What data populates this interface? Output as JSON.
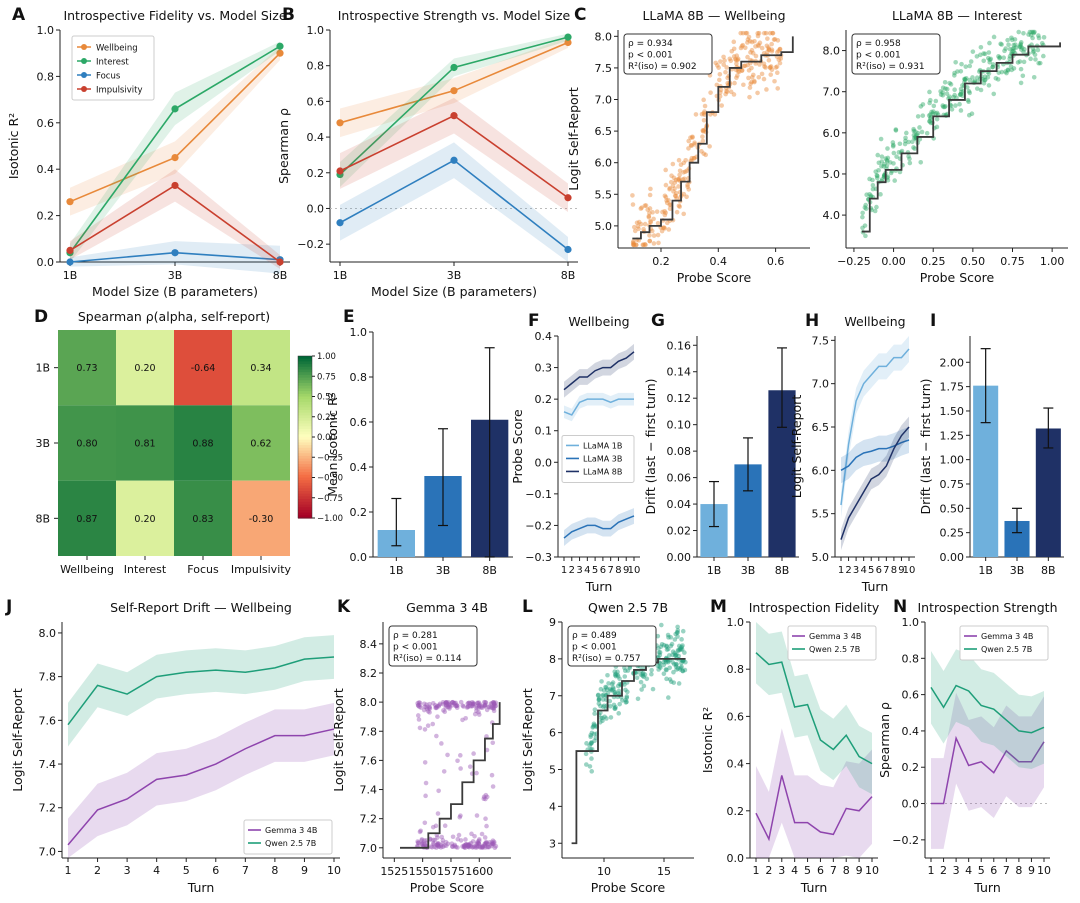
{
  "colors": {
    "wellbeing": "#e8893a",
    "interest": "#2ca867",
    "focus": "#2f7fbf",
    "impulsivity": "#c9402f",
    "gemma": "#8e44ad",
    "qwen": "#1e9e79",
    "l1": "#6fb0dc",
    "l3": "#2a73b8",
    "l8": "#1f3166",
    "fit": "#3a3a3a"
  },
  "chart_data": [
    {
      "id": "A",
      "panel": "A",
      "type": "line",
      "title": "Introspective Fidelity vs. Model Size",
      "xlabel": "Model Size (B parameters)",
      "ylabel": "Isotonic R²",
      "categories": [
        "1B",
        "3B",
        "8B"
      ],
      "ylim": [
        0,
        1
      ],
      "yticks": [
        0.0,
        0.2,
        0.4,
        0.6,
        0.8,
        1.0
      ],
      "legend": "top-left",
      "series": [
        {
          "name": "Wellbeing",
          "color": "#e8893a",
          "values": [
            0.26,
            0.45,
            0.9
          ],
          "band": [
            0.06,
            0.07,
            0.03
          ]
        },
        {
          "name": "Interest",
          "color": "#2ca867",
          "values": [
            0.04,
            0.66,
            0.93
          ],
          "band": [
            0.04,
            0.07,
            0.02
          ]
        },
        {
          "name": "Focus",
          "color": "#2f7fbf",
          "values": [
            0.0,
            0.04,
            0.01
          ],
          "band": [
            0.02,
            0.05,
            0.06
          ]
        },
        {
          "name": "Impulsivity",
          "color": "#c9402f",
          "values": [
            0.05,
            0.33,
            0.0
          ],
          "band": [
            0.04,
            0.07,
            0.03
          ]
        }
      ]
    },
    {
      "id": "B",
      "panel": "B",
      "type": "line",
      "title": "Introspective Strength vs. Model Size",
      "xlabel": "Model Size (B parameters)",
      "ylabel": "Spearman ρ",
      "categories": [
        "1B",
        "3B",
        "8B"
      ],
      "ylim": [
        -0.3,
        1.0
      ],
      "yticks": [
        -0.2,
        0.0,
        0.2,
        0.4,
        0.6,
        0.8,
        1.0
      ],
      "zero_line": true,
      "series": [
        {
          "name": "Wellbeing",
          "color": "#e8893a",
          "values": [
            0.48,
            0.66,
            0.93
          ],
          "band": [
            0.08,
            0.07,
            0.03
          ]
        },
        {
          "name": "Interest",
          "color": "#2ca867",
          "values": [
            0.19,
            0.79,
            0.96
          ],
          "band": [
            0.07,
            0.05,
            0.02
          ]
        },
        {
          "name": "Focus",
          "color": "#2f7fbf",
          "values": [
            -0.08,
            0.27,
            -0.23
          ],
          "band": [
            0.1,
            0.1,
            0.07
          ]
        },
        {
          "name": "Impulsivity",
          "color": "#c9402f",
          "values": [
            0.21,
            0.52,
            0.06
          ],
          "band": [
            0.1,
            0.1,
            0.08
          ]
        }
      ]
    },
    {
      "id": "C1",
      "panel": "C",
      "type": "scatter",
      "title": "LLaMA 8B — Wellbeing",
      "xlabel": "Probe Score",
      "ylabel": "Logit Self-Report",
      "color": "#e8893a",
      "xlim": [
        0.05,
        0.72
      ],
      "ylim": [
        4.65,
        8.1
      ],
      "xticks": [
        0.2,
        0.4,
        0.6
      ],
      "yticks": [
        5.0,
        5.5,
        6.0,
        6.5,
        7.0,
        7.5,
        8.0
      ],
      "tick_decimals": 1,
      "stats": [
        "ρ = 0.934",
        "p < 0.001",
        "R²(iso) = 0.902"
      ],
      "fit": [
        [
          0.1,
          4.8
        ],
        [
          0.13,
          4.9
        ],
        [
          0.16,
          5.0
        ],
        [
          0.2,
          5.1
        ],
        [
          0.24,
          5.4
        ],
        [
          0.27,
          5.7
        ],
        [
          0.3,
          6.0
        ],
        [
          0.33,
          6.3
        ],
        [
          0.36,
          6.8
        ],
        [
          0.4,
          7.2
        ],
        [
          0.44,
          7.5
        ],
        [
          0.48,
          7.6
        ],
        [
          0.55,
          7.7
        ],
        [
          0.62,
          7.75
        ],
        [
          0.66,
          8.0
        ]
      ],
      "scatter": {
        "n": 320,
        "xmin": 0.1,
        "xmax": 0.62,
        "noise": 0.25
      }
    },
    {
      "id": "C2",
      "panel": "",
      "type": "scatter",
      "title": "LLaMA 8B — Interest",
      "xlabel": "Probe Score",
      "ylabel": "",
      "color": "#2ca867",
      "xlim": [
        -0.3,
        1.1
      ],
      "ylim": [
        3.2,
        8.5
      ],
      "xticks": [
        -0.25,
        0.0,
        0.25,
        0.5,
        0.75,
        1.0
      ],
      "yticks": [
        4,
        5,
        6,
        7,
        8
      ],
      "tick_decimals": 2,
      "stats": [
        "ρ = 0.958",
        "p < 0.001",
        "R²(iso) = 0.931"
      ],
      "fit": [
        [
          -0.2,
          3.6
        ],
        [
          -0.15,
          4.4
        ],
        [
          -0.1,
          4.8
        ],
        [
          -0.05,
          5.1
        ],
        [
          0.05,
          5.5
        ],
        [
          0.15,
          5.9
        ],
        [
          0.25,
          6.4
        ],
        [
          0.35,
          6.8
        ],
        [
          0.45,
          7.2
        ],
        [
          0.55,
          7.5
        ],
        [
          0.65,
          7.7
        ],
        [
          0.75,
          7.9
        ],
        [
          0.85,
          8.1
        ],
        [
          1.05,
          8.2
        ]
      ],
      "scatter": {
        "n": 330,
        "xmin": -0.2,
        "xmax": 0.95,
        "noise": 0.3
      }
    },
    {
      "id": "D",
      "panel": "D",
      "type": "heatmap",
      "title": "Spearman ρ(alpha, self-report)",
      "rows": [
        "1B",
        "3B",
        "8B"
      ],
      "cols": [
        "Wellbeing",
        "Interest",
        "Focus",
        "Impulsivity"
      ],
      "values": [
        [
          0.73,
          0.2,
          -0.64,
          0.34
        ],
        [
          0.8,
          0.81,
          0.88,
          0.62
        ],
        [
          0.87,
          0.2,
          0.83,
          -0.3
        ]
      ],
      "labels": [
        [
          "0.73",
          "0.20",
          "-0.64",
          "0.34"
        ],
        [
          "0.80",
          "0.81",
          "0.88",
          "0.62"
        ],
        [
          "0.87",
          "0.20",
          "0.83",
          "-0.30"
        ]
      ],
      "colorbar_ticks": [
        "1.00",
        "0.75",
        "0.50",
        "0.25",
        "0.00",
        "−0.25",
        "−0.50",
        "−0.75",
        "−1.00"
      ]
    },
    {
      "id": "E",
      "panel": "E",
      "type": "bar",
      "title": "",
      "xlabel": "",
      "ylabel": "Mean Isotonic R²",
      "categories": [
        "1B",
        "3B",
        "8B"
      ],
      "values": [
        0.12,
        0.36,
        0.61
      ],
      "err": [
        [
          0.05,
          0.26
        ],
        [
          0.14,
          0.57
        ],
        [
          0.0,
          0.93
        ]
      ],
      "colors": [
        "#6fb0dc",
        "#2a73b8",
        "#1f3166"
      ],
      "ylim": [
        0,
        1.0
      ],
      "yticks": [
        0.0,
        0.2,
        0.4,
        0.6,
        0.8,
        1.0
      ]
    },
    {
      "id": "F",
      "panel": "F",
      "type": "line",
      "title": "Wellbeing",
      "xlabel": "Turn",
      "ylabel": "Probe Score",
      "x": [
        1,
        2,
        3,
        4,
        5,
        6,
        7,
        8,
        9,
        10
      ],
      "ylim": [
        -0.3,
        0.4
      ],
      "yticks": [
        -0.3,
        -0.2,
        -0.1,
        0.0,
        0.1,
        0.2,
        0.3,
        0.4
      ],
      "legend": "middle",
      "series": [
        {
          "name": "LLaMA 1B",
          "color": "#6fb0dc",
          "values": [
            0.16,
            0.15,
            0.19,
            0.2,
            0.2,
            0.2,
            0.19,
            0.2,
            0.2,
            0.2
          ],
          "band": 0.02
        },
        {
          "name": "LLaMA 3B",
          "color": "#2a73b8",
          "values": [
            -0.24,
            -0.22,
            -0.21,
            -0.2,
            -0.2,
            -0.21,
            -0.21,
            -0.19,
            -0.18,
            -0.17
          ],
          "band": 0.025
        },
        {
          "name": "LLaMA 8B",
          "color": "#1f3166",
          "values": [
            0.23,
            0.25,
            0.27,
            0.27,
            0.29,
            0.3,
            0.3,
            0.32,
            0.33,
            0.35
          ],
          "band": 0.025
        }
      ]
    },
    {
      "id": "G",
      "panel": "G",
      "type": "bar",
      "title": "",
      "xlabel": "",
      "ylabel": "Drift (last − first turn)",
      "categories": [
        "1B",
        "3B",
        "8B"
      ],
      "values": [
        0.04,
        0.07,
        0.126
      ],
      "err": [
        [
          0.023,
          0.057
        ],
        [
          0.05,
          0.09
        ],
        [
          0.098,
          0.158
        ]
      ],
      "colors": [
        "#6fb0dc",
        "#2a73b8",
        "#1f3166"
      ],
      "ylim": [
        0,
        0.167
      ],
      "yticks": [
        0.0,
        0.02,
        0.04,
        0.06,
        0.08,
        0.1,
        0.12,
        0.14,
        0.16
      ]
    },
    {
      "id": "H",
      "panel": "H",
      "type": "line",
      "title": "Wellbeing",
      "xlabel": "Turn",
      "ylabel": "Logit Self-Report",
      "x": [
        1,
        2,
        3,
        4,
        5,
        6,
        7,
        8,
        9,
        10
      ],
      "ylim": [
        5.0,
        7.55
      ],
      "yticks": [
        5.0,
        5.5,
        6.0,
        6.5,
        7.0,
        7.5
      ],
      "series": [
        {
          "name": "LLaMA 1B",
          "color": "#6fb0dc",
          "values": [
            5.6,
            6.3,
            6.8,
            7.0,
            7.1,
            7.2,
            7.2,
            7.3,
            7.3,
            7.4
          ],
          "band": 0.15
        },
        {
          "name": "LLaMA 3B",
          "color": "#2a73b8",
          "values": [
            6.0,
            6.05,
            6.15,
            6.2,
            6.22,
            6.25,
            6.25,
            6.28,
            6.32,
            6.35
          ],
          "band": 0.15
        },
        {
          "name": "LLaMA 8B",
          "color": "#1f3166",
          "values": [
            5.2,
            5.45,
            5.6,
            5.75,
            5.9,
            5.95,
            6.05,
            6.25,
            6.4,
            6.5
          ],
          "band": 0.12
        }
      ]
    },
    {
      "id": "I",
      "panel": "I",
      "type": "bar",
      "title": "",
      "xlabel": "",
      "ylabel": "Drift (last − first turn)",
      "categories": [
        "1B",
        "3B",
        "8B"
      ],
      "values": [
        1.76,
        0.37,
        1.32
      ],
      "err": [
        [
          1.38,
          2.14
        ],
        [
          0.25,
          0.5
        ],
        [
          1.12,
          1.53
        ]
      ],
      "colors": [
        "#6fb0dc",
        "#2a73b8",
        "#1f3166"
      ],
      "ylim": [
        0,
        2.27
      ],
      "yticks": [
        0.0,
        0.25,
        0.5,
        0.75,
        1.0,
        1.25,
        1.5,
        1.75,
        2.0
      ]
    },
    {
      "id": "J",
      "panel": "J",
      "type": "line",
      "title": "Self-Report Drift — Wellbeing",
      "xlabel": "Turn",
      "ylabel": "Logit Self-Report",
      "x": [
        1,
        2,
        3,
        4,
        5,
        6,
        7,
        8,
        9,
        10
      ],
      "ylim": [
        6.97,
        8.05
      ],
      "yticks": [
        7.0,
        7.2,
        7.4,
        7.6,
        7.8,
        8.0
      ],
      "legend": "bottom-right",
      "series": [
        {
          "name": "Gemma 3 4B",
          "color": "#8e44ad",
          "values": [
            7.03,
            7.19,
            7.24,
            7.33,
            7.35,
            7.4,
            7.47,
            7.53,
            7.53,
            7.56
          ],
          "band": 0.12
        },
        {
          "name": "Qwen 2.5 7B",
          "color": "#1e9e79",
          "values": [
            7.58,
            7.76,
            7.72,
            7.8,
            7.82,
            7.83,
            7.82,
            7.84,
            7.88,
            7.89
          ],
          "band": 0.1
        }
      ]
    },
    {
      "id": "K",
      "panel": "K",
      "type": "scatter",
      "title": "Gemma 3 4B",
      "xlabel": "Probe Score",
      "ylabel": "Logit Self-Report",
      "color": "#9b59b6",
      "xlim": [
        1515,
        1628
      ],
      "ylim": [
        6.93,
        8.55
      ],
      "xticks": [
        1525,
        1550,
        1575,
        1600
      ],
      "yticks": [
        7.0,
        7.2,
        7.4,
        7.6,
        7.8,
        8.0,
        8.2,
        8.4
      ],
      "tick_decimals": 0,
      "stats": [
        "ρ = 0.281",
        "p < 0.001",
        "R²(iso) = 0.114"
      ],
      "fit": [
        [
          1530,
          7.0
        ],
        [
          1548,
          7.0
        ],
        [
          1555,
          7.1
        ],
        [
          1565,
          7.2
        ],
        [
          1575,
          7.3
        ],
        [
          1585,
          7.45
        ],
        [
          1595,
          7.6
        ],
        [
          1605,
          7.75
        ],
        [
          1612,
          7.85
        ],
        [
          1618,
          8.0
        ]
      ],
      "scatter": {
        "n": 300,
        "xmin": 1545,
        "xmax": 1615,
        "noise": 0.5
      }
    },
    {
      "id": "L",
      "panel": "L",
      "type": "scatter",
      "title": "Qwen 2.5 7B",
      "xlabel": "Probe Score",
      "ylabel": "Logit Self-Report",
      "color": "#1e9e79",
      "xlim": [
        6.5,
        17.5
      ],
      "ylim": [
        2.6,
        9.0
      ],
      "xticks": [
        10,
        15
      ],
      "yticks": [
        3,
        4,
        5,
        6,
        7,
        8,
        9
      ],
      "tick_decimals": 0,
      "stats": [
        "ρ = 0.489",
        "p < 0.001",
        "R²(iso) = 0.757"
      ],
      "fit": [
        [
          7.3,
          3.0
        ],
        [
          7.7,
          5.5
        ],
        [
          8.8,
          5.5
        ],
        [
          9.5,
          6.6
        ],
        [
          10.3,
          7.0
        ],
        [
          11.5,
          7.4
        ],
        [
          12.5,
          7.7
        ],
        [
          13.5,
          7.9
        ],
        [
          14.5,
          8.0
        ],
        [
          16.8,
          8.0
        ]
      ],
      "scatter": {
        "n": 280,
        "xmin": 8.5,
        "xmax": 16.8,
        "noise": 0.35
      }
    },
    {
      "id": "M",
      "panel": "M",
      "type": "line",
      "title": "Introspection Fidelity",
      "xlabel": "Turn",
      "ylabel": "Isotonic R²",
      "x": [
        1,
        2,
        3,
        4,
        5,
        6,
        7,
        8,
        9,
        10
      ],
      "ylim": [
        0,
        1.0
      ],
      "yticks": [
        0.0,
        0.2,
        0.4,
        0.6,
        0.8,
        1.0
      ],
      "legend": "top-right",
      "series": [
        {
          "name": "Gemma 3 4B",
          "color": "#8e44ad",
          "values": [
            0.19,
            0.08,
            0.35,
            0.15,
            0.15,
            0.11,
            0.1,
            0.21,
            0.2,
            0.26
          ],
          "band": 0.2
        },
        {
          "name": "Qwen 2.5 7B",
          "color": "#1e9e79",
          "values": [
            0.87,
            0.82,
            0.83,
            0.64,
            0.65,
            0.5,
            0.46,
            0.52,
            0.43,
            0.4
          ],
          "band": 0.13
        }
      ]
    },
    {
      "id": "N",
      "panel": "N",
      "type": "line",
      "title": "Introspection Strength",
      "xlabel": "Turn",
      "ylabel": "Spearman ρ",
      "x": [
        1,
        2,
        3,
        4,
        5,
        6,
        7,
        8,
        9,
        10
      ],
      "ylim": [
        -0.3,
        1.0
      ],
      "yticks": [
        -0.2,
        0.0,
        0.2,
        0.4,
        0.6,
        0.8,
        1.0
      ],
      "zero_line": true,
      "legend": "top-right",
      "series": [
        {
          "name": "Gemma 3 4B",
          "color": "#8e44ad",
          "values": [
            0.0,
            0.0,
            0.36,
            0.21,
            0.23,
            0.17,
            0.29,
            0.23,
            0.23,
            0.34
          ],
          "band": 0.25
        },
        {
          "name": "Qwen 2.5 7B",
          "color": "#1e9e79",
          "values": [
            0.64,
            0.53,
            0.65,
            0.62,
            0.54,
            0.52,
            0.46,
            0.4,
            0.39,
            0.42
          ],
          "band": 0.2
        }
      ]
    }
  ]
}
